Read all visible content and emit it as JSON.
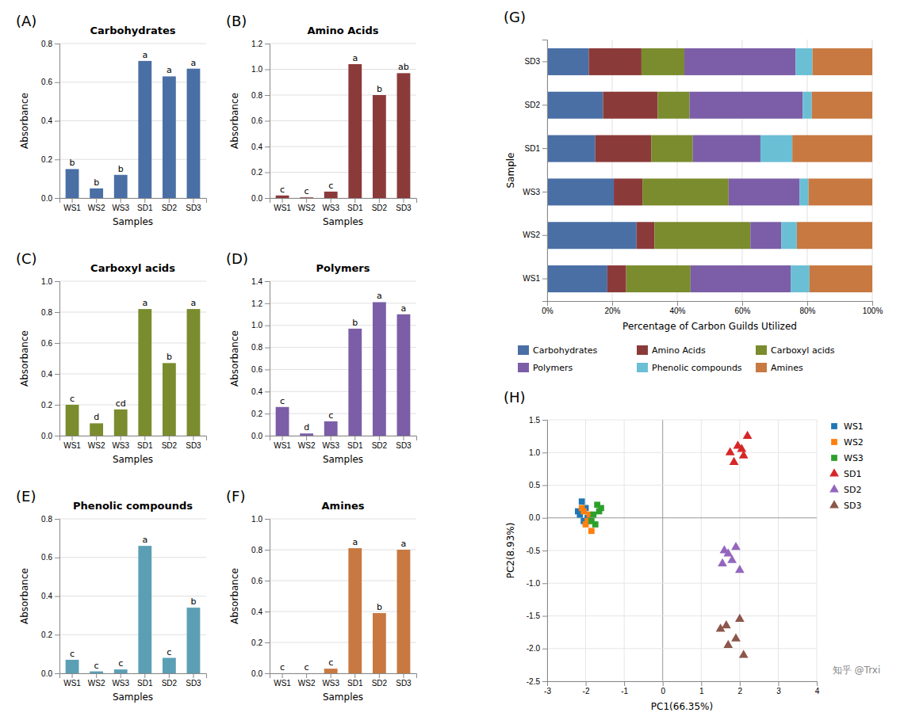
{
  "chart_data": [
    {
      "type": "bar",
      "title": "Carbohydrates",
      "xlabel": "Samples",
      "ylabel": "Absorbance",
      "categories": [
        "WS1",
        "WS2",
        "WS3",
        "SD1",
        "SD2",
        "SD3"
      ],
      "values": [
        0.15,
        0.05,
        0.12,
        0.71,
        0.63,
        0.67
      ],
      "color": "#4a6fa5",
      "ylim": [
        0,
        0.8
      ],
      "yticks": [
        {
          "value": 0,
          "label": "0.0"
        },
        0.2,
        0.4,
        0.6,
        0.8
      ],
      "grid": true,
      "annotations": [
        {
          "text": "(A)"
        },
        {
          "text": "b",
          "x": "WS1",
          "y": 0.15
        },
        {
          "text": "b",
          "x": "WS2",
          "y": 0.05
        },
        {
          "text": "b",
          "x": "WS3",
          "y": 0.12
        },
        {
          "text": "a",
          "x": "SD1",
          "y": 0.71
        },
        {
          "text": "a",
          "x": "SD2",
          "y": 0.63
        },
        {
          "text": "a",
          "x": "SD3",
          "y": 0.67
        }
      ]
    },
    {
      "type": "bar",
      "title": "Amino Acids",
      "xlabel": "Samples",
      "ylabel": "Absorbance",
      "categories": [
        "WS1",
        "WS2",
        "WS3",
        "SD1",
        "SD2",
        "SD3"
      ],
      "values": [
        0.02,
        0.005,
        0.05,
        1.04,
        0.8,
        0.97
      ],
      "color": "#8b3a3a",
      "ylim": [
        0,
        1.2
      ],
      "yticks": [
        {
          "value": 0,
          "label": "0.0"
        },
        0.2,
        0.4,
        0.6,
        0.8,
        {
          "value": 1,
          "label": "1.0"
        },
        1.2
      ],
      "grid": true,
      "annotations": [
        {
          "text": "(B)"
        },
        {
          "text": "c",
          "x": "WS1",
          "y": 0.02
        },
        {
          "text": "c",
          "x": "WS2",
          "y": 0.005
        },
        {
          "text": "c",
          "x": "WS3",
          "y": 0.05
        },
        {
          "text": "a",
          "x": "SD1",
          "y": 1.04
        },
        {
          "text": "b",
          "x": "SD2",
          "y": 0.8
        },
        {
          "text": "ab",
          "x": "SD3",
          "y": 0.97
        }
      ]
    },
    {
      "type": "bar",
      "title": "Carboxyl acids",
      "xlabel": "Samples",
      "ylabel": "Absorbance",
      "categories": [
        "WS1",
        "WS2",
        "WS3",
        "SD1",
        "SD2",
        "SD3"
      ],
      "values": [
        0.2,
        0.08,
        0.17,
        0.82,
        0.47,
        0.82
      ],
      "color": "#7a8c2e",
      "ylim": [
        0,
        1.0
      ],
      "yticks": [
        {
          "value": 0,
          "label": "0.0"
        },
        0.2,
        0.4,
        0.6,
        0.8,
        {
          "value": 1,
          "label": "1.0"
        }
      ],
      "grid": true,
      "annotations": [
        {
          "text": "(C)"
        },
        {
          "text": "c",
          "x": "WS1",
          "y": 0.2
        },
        {
          "text": "d",
          "x": "WS2",
          "y": 0.08
        },
        {
          "text": "cd",
          "x": "WS3",
          "y": 0.17
        },
        {
          "text": "a",
          "x": "SD1",
          "y": 0.82
        },
        {
          "text": "b",
          "x": "SD2",
          "y": 0.47
        },
        {
          "text": "a",
          "x": "SD3",
          "y": 0.82
        }
      ]
    },
    {
      "type": "bar",
      "title": "Polymers",
      "xlabel": "Samples",
      "ylabel": "Absorbance",
      "categories": [
        "WS1",
        "WS2",
        "WS3",
        "SD1",
        "SD2",
        "SD3"
      ],
      "values": [
        0.26,
        0.02,
        0.13,
        0.97,
        1.21,
        1.1
      ],
      "color": "#7b5ea7",
      "ylim": [
        0,
        1.4
      ],
      "yticks": [
        {
          "value": 0,
          "label": "0.0"
        },
        0.2,
        0.4,
        0.6,
        0.8,
        {
          "value": 1,
          "label": "1.0"
        },
        1.2,
        1.4
      ],
      "grid": true,
      "annotations": [
        {
          "text": "(D)"
        },
        {
          "text": "c",
          "x": "WS1",
          "y": 0.26
        },
        {
          "text": "d",
          "x": "WS2",
          "y": 0.02
        },
        {
          "text": "c",
          "x": "WS3",
          "y": 0.13
        },
        {
          "text": "b",
          "x": "SD1",
          "y": 0.97
        },
        {
          "text": "a",
          "x": "SD2",
          "y": 1.21
        },
        {
          "text": "a",
          "x": "SD3",
          "y": 1.1
        }
      ]
    },
    {
      "type": "bar",
      "title": "Phenolic compounds",
      "xlabel": "Samples",
      "ylabel": "Absorbance",
      "categories": [
        "WS1",
        "WS2",
        "WS3",
        "SD1",
        "SD2",
        "SD3"
      ],
      "values": [
        0.07,
        0.01,
        0.02,
        0.66,
        0.08,
        0.34
      ],
      "color": "#5b9fb5",
      "ylim": [
        0,
        0.8
      ],
      "yticks": [
        {
          "value": 0,
          "label": "0.0"
        },
        0.2,
        0.4,
        0.6,
        0.8
      ],
      "grid": true,
      "annotations": [
        {
          "text": "(E)"
        },
        {
          "text": "c",
          "x": "WS1",
          "y": 0.07
        },
        {
          "text": "c",
          "x": "WS2",
          "y": 0.01
        },
        {
          "text": "c",
          "x": "WS3",
          "y": 0.02
        },
        {
          "text": "a",
          "x": "SD1",
          "y": 0.66
        },
        {
          "text": "c",
          "x": "SD2",
          "y": 0.08
        },
        {
          "text": "b",
          "x": "SD3",
          "y": 0.34
        }
      ]
    },
    {
      "type": "bar",
      "title": "Amines",
      "xlabel": "Samples",
      "ylabel": "Absorbance",
      "categories": [
        "WS1",
        "WS2",
        "WS3",
        "SD1",
        "SD2",
        "SD3"
      ],
      "values": [
        0.0,
        0.0,
        0.03,
        0.81,
        0.39,
        0.8
      ],
      "color": "#c87941",
      "ylim": [
        0,
        1.0
      ],
      "yticks": [
        {
          "value": 0,
          "label": "0.0"
        },
        0.2,
        0.4,
        0.6,
        0.8,
        {
          "value": 1,
          "label": "1.0"
        }
      ],
      "grid": true,
      "annotations": [
        {
          "text": "(F)"
        },
        {
          "text": "c",
          "x": "WS1",
          "y": 0.0
        },
        {
          "text": "c",
          "x": "WS2",
          "y": 0.0
        },
        {
          "text": "c",
          "x": "WS3",
          "y": 0.03
        },
        {
          "text": "a",
          "x": "SD1",
          "y": 0.81
        },
        {
          "text": "b",
          "x": "SD2",
          "y": 0.39
        },
        {
          "text": "a",
          "x": "SD3",
          "y": 0.8
        }
      ]
    },
    {
      "type": "bar",
      "orientation": "horizontal",
      "stacked": true,
      "xlabel": "Percentage of Carbon Guilds Utilized",
      "ylabel": "Sample",
      "categories": [
        "WS1",
        "WS2",
        "WS3",
        "SD1",
        "SD2",
        "SD3"
      ],
      "series": [
        {
          "name": "Carbohydrates",
          "color": "#4a6fa5",
          "values": [
            0.185,
            0.275,
            0.205,
            0.148,
            0.172,
            0.128
          ]
        },
        {
          "name": "Amino Acids",
          "color": "#8b3a3a",
          "values": [
            0.058,
            0.055,
            0.088,
            0.172,
            0.168,
            0.162
          ]
        },
        {
          "name": "Carboxyl acids",
          "color": "#7a8c2e",
          "values": [
            0.198,
            0.295,
            0.265,
            0.128,
            0.098,
            0.132
          ]
        },
        {
          "name": "Polymers",
          "color": "#7b5ea7",
          "values": [
            0.308,
            0.095,
            0.218,
            0.208,
            0.348,
            0.342
          ]
        },
        {
          "name": "Phenolic compounds",
          "color": "#6bbfd4",
          "values": [
            0.058,
            0.048,
            0.028,
            0.098,
            0.028,
            0.052
          ]
        },
        {
          "name": "Amines",
          "color": "#c87941",
          "values": [
            0.193,
            0.232,
            0.196,
            0.246,
            0.186,
            0.184
          ]
        }
      ],
      "xlim": [
        0,
        1.0
      ],
      "xticks": [
        {
          "value": 0,
          "label": "0%"
        },
        {
          "value": 0.2,
          "label": "20%"
        },
        {
          "value": 0.4,
          "label": "40%"
        },
        {
          "value": 0.6,
          "label": "60%"
        },
        {
          "value": 0.8,
          "label": "80%"
        },
        {
          "value": 1.0,
          "label": "100%"
        }
      ],
      "grid": true,
      "legend": "bottom",
      "annotations": [
        {
          "text": "(G)"
        }
      ]
    },
    {
      "type": "scatter",
      "xlabel": "PC1(66.35%)",
      "ylabel": "PC2(8.93%)",
      "xlim": [
        -3,
        4
      ],
      "ylim": [
        -2.5,
        1.5
      ],
      "xticks": [
        -3,
        -2,
        -1,
        0,
        1,
        2,
        3,
        4
      ],
      "yticks": [
        -2.5,
        {
          "value": -2,
          "label": "-2.0"
        },
        -1.5,
        {
          "value": -1,
          "label": "-1.0"
        },
        -0.5,
        {
          "value": 0,
          "label": "0.0"
        },
        0.5,
        {
          "value": 1,
          "label": "1.0"
        },
        1.5
      ],
      "grid": true,
      "legend": "right",
      "series": [
        {
          "name": "WS1",
          "marker": "square",
          "x": [
            -2.2,
            -2.1,
            -2.15,
            -2.05,
            -2.0,
            -1.95
          ],
          "y": [
            0.1,
            0.25,
            0.05,
            -0.05,
            0.15,
            0.0
          ]
        },
        {
          "name": "WS2",
          "marker": "square",
          "x": [
            -2.0,
            -1.9,
            -1.85,
            -2.05,
            -1.95,
            -2.1
          ],
          "y": [
            -0.1,
            0.05,
            -0.2,
            0.1,
            -0.05,
            0.15
          ]
        },
        {
          "name": "WS3",
          "marker": "square",
          "x": [
            -1.8,
            -1.65,
            -1.7,
            -1.75,
            -1.6,
            -1.85
          ],
          "y": [
            0.05,
            0.1,
            0.2,
            -0.1,
            0.15,
            -0.05
          ]
        },
        {
          "name": "SD1",
          "marker": "triangle",
          "x": [
            1.85,
            2.05,
            2.2,
            1.95,
            2.1,
            1.75
          ],
          "y": [
            0.85,
            1.05,
            1.25,
            1.1,
            0.95,
            1.0
          ]
        },
        {
          "name": "SD2",
          "marker": "triangle",
          "x": [
            1.6,
            1.8,
            2.0,
            1.7,
            1.55,
            1.9
          ],
          "y": [
            -0.5,
            -0.65,
            -0.8,
            -0.55,
            -0.7,
            -0.45
          ]
        },
        {
          "name": "SD3",
          "marker": "triangle",
          "x": [
            1.5,
            1.7,
            1.9,
            2.1,
            1.65,
            2.0
          ],
          "y": [
            -1.7,
            -1.95,
            -1.85,
            -2.1,
            -1.65,
            -1.55
          ]
        }
      ],
      "annotations": [
        {
          "text": "(H)"
        },
        {
          "text": "知乎 @Trxi"
        }
      ]
    }
  ]
}
